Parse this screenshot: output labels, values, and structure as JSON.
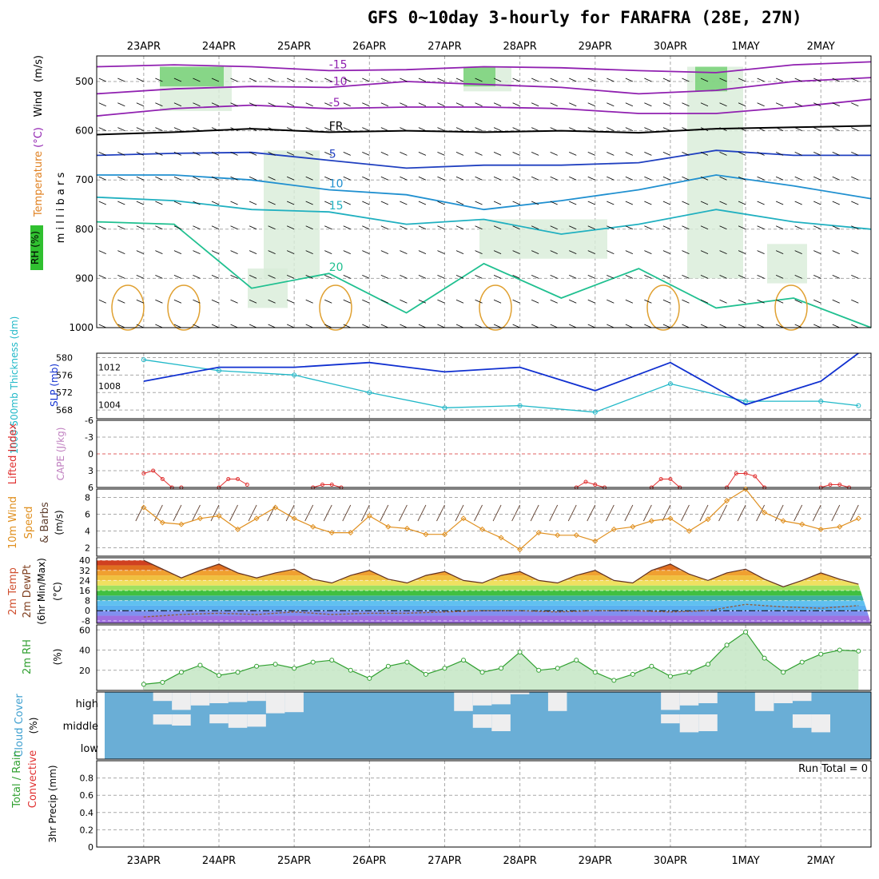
{
  "title": "GFS 0~10day 3-hourly for FARAFRA (28E, 27N)",
  "dates": [
    "23APR",
    "24APR",
    "25APR",
    "26APR",
    "27APR",
    "28APR",
    "29APR",
    "30APR",
    "1MAY",
    "2MAY"
  ],
  "colors": {
    "grid": "#a8a8a8",
    "frame": "#000000",
    "thickness": "#20b8c8",
    "slp": "#1030d0",
    "lifted": "#e03030",
    "wind10": "#e09020",
    "barb": "#604030",
    "rh": "#30a030",
    "cloud": "#6aaed6",
    "cloudGap": "#eeeeef"
  },
  "chart_data": [
    {
      "type": "contour",
      "name": "upper-air",
      "ylabel_parts": [
        "RH (%)",
        "Temperature",
        "(°C)",
        "Wind",
        "(m/s)"
      ],
      "pressure_label": "m i l l i b a r s",
      "levels": [
        500,
        600,
        700,
        800,
        900,
        1000
      ],
      "temperature_isotherms": [
        {
          "label": "-15",
          "values": [
            -15,
            -15,
            -15,
            -15,
            -15,
            -15,
            -15,
            -15,
            -15,
            -15,
            -15
          ],
          "y": [
            470,
            466,
            470,
            478,
            476,
            470,
            472,
            478,
            482,
            466,
            460
          ]
        },
        {
          "label": "-10",
          "values": [
            -10,
            -10,
            -10,
            -10,
            -10,
            -10,
            -10,
            -10,
            -10,
            -10,
            -10
          ],
          "y": [
            525,
            515,
            510,
            512,
            500,
            506,
            512,
            525,
            518,
            500,
            492
          ]
        },
        {
          "label": "-5",
          "values": [
            -5,
            -5,
            -5,
            -5,
            -5,
            -5,
            -5,
            -5,
            -5,
            -5,
            -5
          ],
          "y": [
            570,
            555,
            548,
            555,
            552,
            552,
            555,
            565,
            565,
            552,
            536
          ]
        },
        {
          "label": "FR",
          "values": [
            0,
            0,
            0,
            0,
            0,
            0,
            0,
            0,
            0,
            0,
            0
          ],
          "y": [
            608,
            603,
            596,
            603,
            600,
            603,
            600,
            604,
            596,
            593,
            590
          ]
        },
        {
          "label": "5",
          "values": [
            5,
            5,
            5,
            5,
            5,
            5,
            5,
            5,
            5,
            5,
            5
          ],
          "y": [
            650,
            646,
            644,
            660,
            676,
            670,
            670,
            665,
            640,
            650,
            650
          ]
        },
        {
          "label": "10",
          "values": [
            10,
            10,
            10,
            10,
            10,
            10,
            10,
            10,
            10,
            10,
            10
          ],
          "y": [
            690,
            690,
            700,
            720,
            730,
            760,
            742,
            720,
            690,
            712,
            738
          ]
        },
        {
          "label": "15",
          "values": [
            15,
            15,
            15,
            15,
            15,
            15,
            15,
            15,
            15,
            15,
            15
          ],
          "y": [
            735,
            742,
            760,
            765,
            790,
            780,
            810,
            790,
            760,
            785,
            800
          ]
        },
        {
          "label": "20",
          "values": [
            20,
            20,
            20,
            20,
            20,
            20,
            20,
            20,
            20,
            20,
            20
          ],
          "y": [
            785,
            790,
            920,
            890,
            970,
            870,
            940,
            880,
            960,
            940,
            1000
          ]
        }
      ]
    },
    {
      "type": "line",
      "name": "thickness-slp",
      "ylabel_left": "1000-500mb Thickness (dm)",
      "ylabel_right": "SLP (mb)",
      "thickness_ticks": [
        "580",
        "576",
        "572",
        "568"
      ],
      "slp_ticks": [
        "1012",
        "1008",
        "1004"
      ],
      "x_hours": [
        0,
        24,
        48,
        72,
        96,
        120,
        144,
        168,
        192,
        216,
        228
      ],
      "thickness_dm": [
        579.5,
        577,
        576,
        572,
        568.5,
        569,
        567.5,
        574,
        570,
        570,
        569
      ],
      "slp_mb": [
        1009,
        1012,
        1012,
        1013,
        1011,
        1012,
        1007,
        1013,
        1004,
        1009,
        1015
      ]
    },
    {
      "type": "line",
      "name": "lifted-index",
      "ylabel": "Lifted Index",
      "ylabel_cape": "CAPE (J/kg)",
      "ticks": [
        "-6",
        "-3",
        "0",
        "3",
        "6"
      ],
      "ylim": [
        -6,
        6
      ],
      "segments": [
        {
          "x": [
            0,
            3,
            6,
            9,
            12
          ],
          "y": [
            3.5,
            3,
            4.5,
            6,
            7
          ]
        },
        {
          "x": [
            24,
            27,
            30,
            33
          ],
          "y": [
            6,
            4.5,
            4.5,
            5.5
          ]
        },
        {
          "x": [
            54,
            57,
            60,
            63
          ],
          "y": [
            6,
            5.5,
            5.5,
            6
          ]
        },
        {
          "x": [
            138,
            141,
            144,
            147
          ],
          "y": [
            6,
            5,
            5.5,
            6.5
          ]
        },
        {
          "x": [
            162,
            165,
            168,
            171
          ],
          "y": [
            6,
            4.5,
            4.5,
            6
          ]
        },
        {
          "x": [
            186,
            189,
            192,
            195,
            198
          ],
          "y": [
            6,
            3.5,
            3.5,
            4,
            6
          ]
        },
        {
          "x": [
            216,
            219,
            222,
            225
          ],
          "y": [
            6,
            5.5,
            5.5,
            6
          ]
        }
      ]
    },
    {
      "type": "line",
      "name": "wind10m",
      "ylabel": "10m Wind Speed & Barbs (m/s)",
      "ticks": [
        "8",
        "6",
        "4",
        "2"
      ],
      "ylim": [
        1,
        9
      ],
      "x_hours": [
        0,
        6,
        12,
        18,
        24,
        30,
        36,
        42,
        48,
        54,
        60,
        66,
        72,
        78,
        84,
        90,
        96,
        102,
        108,
        114,
        120,
        126,
        132,
        138,
        144,
        150,
        156,
        162,
        168,
        174,
        180,
        186,
        192,
        198,
        204,
        210,
        216,
        222,
        228
      ],
      "speed": [
        6.8,
        5,
        4.8,
        5.5,
        5.8,
        4.2,
        5.5,
        6.8,
        5.5,
        4.5,
        3.8,
        3.8,
        5.8,
        4.5,
        4.3,
        3.6,
        3.6,
        5.5,
        4.2,
        3.2,
        1.8,
        3.8,
        3.5,
        3.5,
        2.8,
        4.2,
        4.5,
        5.2,
        5.5,
        4,
        5.4,
        7.6,
        9,
        6.2,
        5.2,
        4.8,
        4.2,
        4.5,
        5.5
      ]
    },
    {
      "type": "area",
      "name": "2m-temp",
      "ylabel": "2m Temp 2m DewPt (6hr Min/Max) (°C)",
      "ticks": [
        "40",
        "32",
        "24",
        "16",
        "8",
        "0",
        "-8"
      ],
      "ylim": [
        -10,
        42
      ],
      "temp_x": [
        0,
        6,
        12,
        18,
        24,
        30,
        36,
        42,
        48,
        54,
        60,
        66,
        72,
        78,
        84,
        90,
        96,
        102,
        108,
        114,
        120,
        126,
        132,
        138,
        144,
        150,
        156,
        162,
        168,
        174,
        180,
        186,
        192,
        198,
        204,
        210,
        216,
        222,
        228
      ],
      "temp": [
        40,
        33,
        26,
        32,
        37,
        30,
        26,
        30,
        33,
        25,
        22,
        28,
        32,
        25,
        22,
        28,
        31,
        24,
        22,
        28,
        31,
        24,
        22,
        28,
        32,
        24,
        22,
        32,
        37,
        29,
        24,
        30,
        33,
        25,
        19,
        24,
        30,
        25,
        21
      ],
      "dewpt_x": [
        0,
        12,
        24,
        36,
        48,
        60,
        72,
        84,
        96,
        108,
        120,
        132,
        144,
        156,
        168,
        180,
        192,
        204,
        216,
        228
      ],
      "dewpt": [
        -5,
        -3,
        -2,
        -3,
        -1,
        -3,
        -2,
        -2,
        -1,
        0,
        0,
        -1,
        0,
        0,
        -1,
        0,
        5,
        3,
        2,
        4
      ]
    },
    {
      "type": "area",
      "name": "2m-rh",
      "ylabel": "2m RH (%)",
      "ticks": [
        "60",
        "40",
        "20"
      ],
      "ylim": [
        0,
        65
      ],
      "x_hours": [
        0,
        6,
        12,
        18,
        24,
        30,
        36,
        42,
        48,
        54,
        60,
        66,
        72,
        78,
        84,
        90,
        96,
        102,
        108,
        114,
        120,
        126,
        132,
        138,
        144,
        150,
        156,
        162,
        168,
        174,
        180,
        186,
        192,
        198,
        204,
        210,
        216,
        222,
        228
      ],
      "rh": [
        6,
        8,
        18,
        25,
        15,
        18,
        24,
        26,
        22,
        28,
        30,
        20,
        12,
        24,
        28,
        16,
        22,
        30,
        18,
        22,
        38,
        20,
        22,
        30,
        18,
        10,
        16,
        24,
        14,
        18,
        26,
        45,
        58,
        32,
        18,
        28,
        36,
        40,
        39
      ]
    },
    {
      "type": "heatmap",
      "name": "cloud-cover",
      "ylabel": "Cloud Cover (%)",
      "rows": [
        "high",
        "middle",
        "low"
      ],
      "x_hours": [
        0,
        6,
        12,
        18,
        24,
        30,
        36,
        42,
        48,
        54,
        60,
        66,
        72,
        78,
        84,
        90,
        96,
        102,
        108,
        114,
        120,
        126,
        132,
        138,
        144,
        150,
        156,
        162,
        168,
        174,
        180,
        186,
        192,
        198,
        204,
        210,
        216,
        222,
        228
      ],
      "high": [
        0,
        40,
        80,
        60,
        50,
        45,
        40,
        95,
        90,
        0,
        0,
        0,
        0,
        0,
        0,
        0,
        0,
        85,
        60,
        55,
        10,
        0,
        85,
        0,
        0,
        0,
        0,
        0,
        80,
        60,
        50,
        0,
        0,
        85,
        50,
        40,
        0,
        0,
        0
      ],
      "middle": [
        0,
        45,
        50,
        0,
        40,
        60,
        55,
        0,
        0,
        0,
        0,
        0,
        0,
        0,
        0,
        0,
        0,
        0,
        60,
        75,
        0,
        0,
        0,
        0,
        0,
        0,
        0,
        0,
        40,
        80,
        75,
        0,
        0,
        0,
        0,
        60,
        80,
        0,
        0
      ],
      "low": [
        0,
        0,
        0,
        0,
        0,
        0,
        0,
        0,
        0,
        0,
        0,
        0,
        0,
        0,
        0,
        0,
        0,
        0,
        0,
        0,
        0,
        0,
        0,
        0,
        0,
        0,
        0,
        0,
        0,
        0,
        0,
        0,
        0,
        0,
        0,
        0,
        0,
        0,
        0
      ]
    },
    {
      "type": "bar",
      "name": "precip",
      "ylabel": "3hr Precip (mm)",
      "legend_left": [
        "Total / Rain",
        "Convective"
      ],
      "ticks": [
        "0.8",
        "0.6",
        "0.4",
        "0.2",
        "0"
      ],
      "ylim": [
        0,
        1
      ],
      "annotation": "Run Total = 0",
      "values": []
    }
  ]
}
